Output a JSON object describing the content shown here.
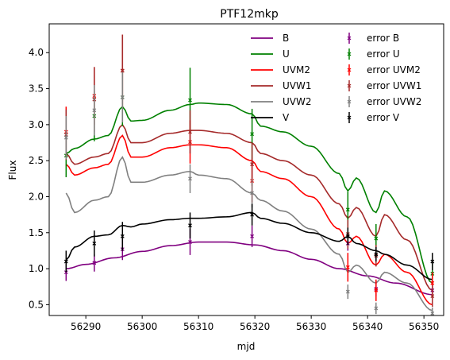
{
  "chart_data": {
    "type": "line",
    "title": "PTF12mkp",
    "xlabel": "mjd",
    "ylabel": "Flux",
    "xlim": [
      56283.5,
      56353.5
    ],
    "ylim": [
      0.35,
      4.4
    ],
    "xticks": [
      56290,
      56300,
      56310,
      56320,
      56330,
      56340,
      56350
    ],
    "yticks": [
      0.5,
      1.0,
      1.5,
      2.0,
      2.5,
      3.0,
      3.5,
      4.0
    ],
    "legend_position": "top-right",
    "legend_columns": 2,
    "eclipse_mjd": [
      56286.5,
      56291.5,
      56296.5,
      56319.5,
      56336.5,
      56341.5,
      56351.5
    ],
    "series": [
      {
        "name": "B",
        "color": "#800080",
        "x": [
          56286.5,
          56290,
          56295,
          56300,
          56305,
          56310,
          56315,
          56320,
          56325,
          56330,
          56335,
          56340,
          56345,
          56351.5
        ],
        "y": [
          1.0,
          1.06,
          1.15,
          1.24,
          1.32,
          1.37,
          1.37,
          1.33,
          1.25,
          1.13,
          1.0,
          0.9,
          0.8,
          0.64
        ]
      },
      {
        "name": "U",
        "color": "#008000",
        "x": [
          56286.5,
          56288,
          56291.5,
          56294,
          56296.5,
          56298,
          56300,
          56305,
          56308.5,
          56310,
          56315,
          56319.5,
          56321,
          56325,
          56330,
          56335,
          56336.5,
          56338,
          56341.5,
          56343,
          56347,
          56351.5
        ],
        "y": [
          2.6,
          2.67,
          2.8,
          2.85,
          3.25,
          3.05,
          3.06,
          3.2,
          3.28,
          3.3,
          3.28,
          3.15,
          2.98,
          2.9,
          2.7,
          2.32,
          2.08,
          2.26,
          1.78,
          2.08,
          1.72,
          0.8
        ]
      },
      {
        "name": "UVM2",
        "color": "#ff0000",
        "x": [
          56286.5,
          56288,
          56291.5,
          56294,
          56296.5,
          56298,
          56300,
          56305,
          56308.5,
          56310,
          56315,
          56319.5,
          56321,
          56325,
          56330,
          56335,
          56336.5,
          56338,
          56341.5,
          56343,
          56347,
          56351.5
        ],
        "y": [
          2.45,
          2.3,
          2.4,
          2.45,
          2.85,
          2.55,
          2.55,
          2.68,
          2.72,
          2.72,
          2.68,
          2.5,
          2.35,
          2.25,
          2.0,
          1.55,
          1.35,
          1.45,
          1.05,
          1.2,
          0.95,
          0.5
        ]
      },
      {
        "name": "UVW1",
        "color": "#a52a2a",
        "x": [
          56286.5,
          56288,
          56291.5,
          56294,
          56296.5,
          56298,
          56300,
          56305,
          56308.5,
          56310,
          56315,
          56319.5,
          56321,
          56325,
          56330,
          56335,
          56336.5,
          56338,
          56341.5,
          56343,
          56347,
          56351.5
        ],
        "y": [
          2.6,
          2.45,
          2.55,
          2.6,
          3.0,
          2.75,
          2.75,
          2.88,
          2.92,
          2.92,
          2.88,
          2.75,
          2.6,
          2.5,
          2.3,
          1.9,
          1.7,
          1.85,
          1.45,
          1.75,
          1.4,
          0.7
        ]
      },
      {
        "name": "UVW2",
        "color": "#808080",
        "x": [
          56286.5,
          56288,
          56291.5,
          56294,
          56296.5,
          56298,
          56300,
          56305,
          56308.5,
          56310,
          56315,
          56319.5,
          56321,
          56325,
          56330,
          56335,
          56336.5,
          56338,
          56341.5,
          56343,
          56347,
          56351.5
        ],
        "y": [
          2.05,
          1.78,
          1.95,
          2.0,
          2.55,
          2.2,
          2.2,
          2.3,
          2.35,
          2.3,
          2.25,
          2.05,
          1.95,
          1.8,
          1.55,
          1.2,
          0.95,
          1.05,
          0.8,
          0.95,
          0.8,
          0.42
        ]
      },
      {
        "name": "V",
        "color": "#000000",
        "x": [
          56286.5,
          56288,
          56291.5,
          56294,
          56296.5,
          56298,
          56300,
          56305,
          56308.5,
          56310,
          56315,
          56319.5,
          56321,
          56325,
          56330,
          56335,
          56336.5,
          56338,
          56341.5,
          56343,
          56347,
          56351.5
        ],
        "y": [
          1.12,
          1.3,
          1.45,
          1.47,
          1.6,
          1.58,
          1.62,
          1.68,
          1.7,
          1.7,
          1.72,
          1.78,
          1.7,
          1.63,
          1.5,
          1.38,
          1.45,
          1.35,
          1.25,
          1.2,
          1.05,
          0.85
        ]
      }
    ],
    "errors": [
      {
        "name": "error B",
        "color": "#800080",
        "x": [
          56286.5,
          56291.5,
          56296.5,
          56308.5,
          56319.5,
          56336.5,
          56341.5,
          56351.5
        ],
        "y": [
          0.95,
          1.08,
          1.27,
          1.37,
          1.45,
          1.35,
          0.72,
          0.7
        ],
        "err": [
          0.12,
          0.12,
          0.15,
          0.18,
          0.15,
          0.1,
          0.1,
          0.1
        ]
      },
      {
        "name": "error U",
        "color": "#008000",
        "x": [
          56286.5,
          56291.5,
          56296.5,
          56308.5,
          56319.5,
          56336.5,
          56341.5,
          56351.5
        ],
        "y": [
          2.57,
          3.12,
          3.38,
          3.34,
          2.87,
          1.82,
          1.42,
          0.93
        ],
        "err": [
          0.3,
          0.35,
          0.4,
          0.45,
          0.35,
          0.25,
          0.2,
          0.15
        ]
      },
      {
        "name": "error UVM2",
        "color": "#ff0000",
        "x": [
          56286.5,
          56291.5,
          56296.5,
          56308.5,
          56319.5,
          56336.5,
          56341.5,
          56351.5
        ],
        "y": [
          2.9,
          3.4,
          3.75,
          2.76,
          2.22,
          1.02,
          0.7,
          0.8
        ],
        "err": [
          0.35,
          0.4,
          0.5,
          0.3,
          0.3,
          0.2,
          0.15,
          0.15
        ]
      },
      {
        "name": "error UVW1",
        "color": "#a52a2a",
        "x": [
          56286.5,
          56291.5,
          56296.5,
          56308.5,
          56319.5,
          56336.5,
          56341.5,
          56351.5
        ],
        "y": [
          2.86,
          3.35,
          3.75,
          2.9,
          2.45,
          1.48,
          1.18,
          0.62
        ],
        "err": [
          0.35,
          0.45,
          0.5,
          0.3,
          0.3,
          0.2,
          0.15,
          0.15
        ]
      },
      {
        "name": "error UVW2",
        "color": "#808080",
        "x": [
          56286.5,
          56291.5,
          56296.5,
          56308.5,
          56319.5,
          56336.5,
          56341.5,
          56351.5
        ],
        "y": [
          2.82,
          3.2,
          3.38,
          2.25,
          2.05,
          0.68,
          0.45,
          0.38
        ],
        "err": [
          0.3,
          0.35,
          0.35,
          0.2,
          0.2,
          0.1,
          0.08,
          0.08
        ]
      },
      {
        "name": "error V",
        "color": "#000000",
        "x": [
          56286.5,
          56291.5,
          56296.5,
          56308.5,
          56319.5,
          56336.5,
          56341.5,
          56351.5
        ],
        "y": [
          1.1,
          1.35,
          1.45,
          1.6,
          1.75,
          1.45,
          1.2,
          1.1
        ],
        "err": [
          0.15,
          0.18,
          0.2,
          0.18,
          0.15,
          0.12,
          0.1,
          0.12
        ]
      }
    ]
  }
}
